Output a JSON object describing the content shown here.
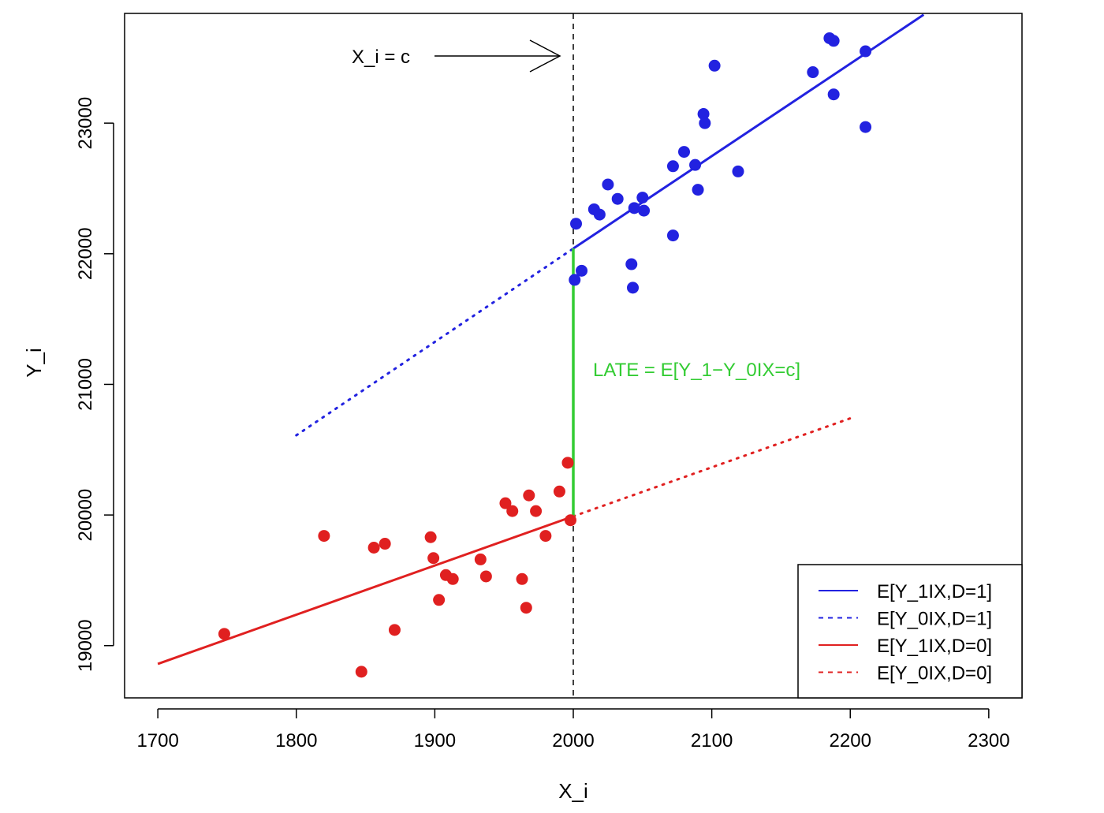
{
  "chart_data": {
    "type": "scatter",
    "title": "",
    "xlabel": "X_i",
    "ylabel": "Y_i",
    "xlim": [
      1676,
      2324
    ],
    "ylim": [
      18600,
      23840
    ],
    "xticks": [
      "1700",
      "1800",
      "1900",
      "2000",
      "2100",
      "2200",
      "2300"
    ],
    "yticks": [
      "19000",
      "20000",
      "21000",
      "22000",
      "23000"
    ],
    "grid": false,
    "legend_position": "bottom-right",
    "cutoff": 2000,
    "points": [
      {
        "group": "treated",
        "color": "#2222e0",
        "data": [
          [
            2001,
            21800
          ],
          [
            2002,
            22230
          ],
          [
            2006,
            21870
          ],
          [
            2015,
            22340
          ],
          [
            2019,
            22300
          ],
          [
            2025,
            22530
          ],
          [
            2032,
            22420
          ],
          [
            2042,
            21920
          ],
          [
            2043,
            21740
          ],
          [
            2044,
            22350
          ],
          [
            2050,
            22430
          ],
          [
            2051,
            22330
          ],
          [
            2072,
            22140
          ],
          [
            2072,
            22670
          ],
          [
            2080,
            22780
          ],
          [
            2088,
            22680
          ],
          [
            2090,
            22490
          ],
          [
            2094,
            23070
          ],
          [
            2095,
            23000
          ],
          [
            2102,
            23440
          ],
          [
            2119,
            22630
          ],
          [
            2173,
            23390
          ],
          [
            2185,
            23650
          ],
          [
            2188,
            23630
          ],
          [
            2188,
            23220
          ],
          [
            2211,
            22970
          ],
          [
            2211,
            23550
          ]
        ]
      },
      {
        "group": "control",
        "color": "#e02020",
        "data": [
          [
            1748,
            19090
          ],
          [
            1820,
            19840
          ],
          [
            1847,
            18800
          ],
          [
            1856,
            19750
          ],
          [
            1864,
            19780
          ],
          [
            1871,
            19120
          ],
          [
            1897,
            19830
          ],
          [
            1899,
            19670
          ],
          [
            1903,
            19350
          ],
          [
            1908,
            19540
          ],
          [
            1913,
            19510
          ],
          [
            1933,
            19660
          ],
          [
            1937,
            19530
          ],
          [
            1951,
            20090
          ],
          [
            1956,
            20030
          ],
          [
            1963,
            19510
          ],
          [
            1966,
            19290
          ],
          [
            1968,
            20150
          ],
          [
            1973,
            20030
          ],
          [
            1980,
            19840
          ],
          [
            1990,
            20180
          ],
          [
            1996,
            20400
          ],
          [
            1998,
            19960
          ]
        ]
      }
    ],
    "lines": [
      {
        "name": "E[Y_1IX,D=1]",
        "color": "#2222e0",
        "style": "solid",
        "x": [
          2000,
          2253
        ],
        "y": [
          22040,
          23830
        ]
      },
      {
        "name": "E[Y_0IX,D=1]",
        "color": "#2222e0",
        "style": "dotted",
        "x": [
          1800,
          2000
        ],
        "y": [
          20610,
          22040
        ]
      },
      {
        "name": "E[Y_1IX,D=0]",
        "color": "#e02020",
        "style": "solid",
        "x": [
          1700,
          2000
        ],
        "y": [
          18860,
          19990
        ]
      },
      {
        "name": "E[Y_0IX,D=0]",
        "color": "#e02020",
        "style": "dotted",
        "x": [
          2000,
          2200
        ],
        "y": [
          19990,
          20740
        ]
      }
    ],
    "late_segment": {
      "color": "#33cc33",
      "x": 2000,
      "y": [
        19990,
        22040
      ]
    },
    "annotations": {
      "cutoff_label": "X_i = c",
      "late_label": "LATE = E[Y_1−Y_0IX=c]"
    },
    "legend": [
      {
        "label": "E[Y_1IX,D=1]",
        "color": "#2222e0",
        "style": "solid"
      },
      {
        "label": "E[Y_0IX,D=1]",
        "color": "#2222e0",
        "style": "dashed"
      },
      {
        "label": "E[Y_1IX,D=0]",
        "color": "#e02020",
        "style": "solid"
      },
      {
        "label": "E[Y_0IX,D=0]",
        "color": "#e02020",
        "style": "dashed"
      }
    ]
  }
}
